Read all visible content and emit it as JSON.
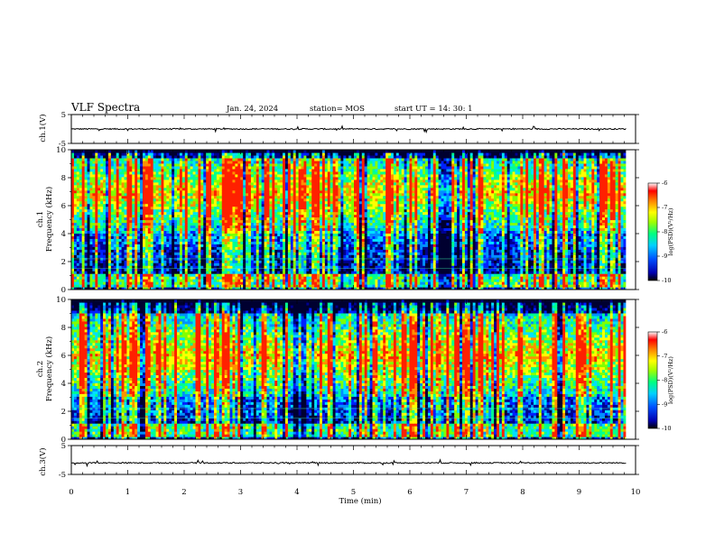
{
  "header": {
    "title": "VLF Spectra",
    "date": "Jan. 24, 2024",
    "station": "station= MOS",
    "start": "start  UT  =   14: 30: 1"
  },
  "chart_data": [
    {
      "id": "ch1-waveform",
      "type": "line",
      "ylabel": "ch.1(V)",
      "ylim": [
        -5,
        5
      ],
      "yticks": [
        "5",
        "-5"
      ],
      "xlim": [
        0,
        10
      ],
      "baseline": 0,
      "data_extent_min": 9.83,
      "color": "#000000"
    },
    {
      "id": "ch1-spectrogram",
      "type": "heatmap",
      "ylabel": "ch.1\nFrequency (kHz)",
      "ylim": [
        0,
        10
      ],
      "yticks": [
        "0",
        "2",
        "4",
        "6",
        "8",
        "10"
      ],
      "xlim": [
        0,
        10
      ],
      "data_extent_min": 9.83,
      "emission_band_khz": [
        4.0,
        9.5
      ],
      "emission_center_khz": 7.0,
      "low_band_khz": [
        0.2,
        1.2
      ],
      "colorbar": {
        "label": "log(PSD)(V²/Hz)",
        "ticks": [
          "-6",
          "-7",
          "-8",
          "-9",
          "-10"
        ],
        "range": [
          -10,
          -6
        ]
      }
    },
    {
      "id": "ch2-spectrogram",
      "type": "heatmap",
      "ylabel": "ch.2\nFrequency (kHz)",
      "ylim": [
        0,
        10
      ],
      "yticks": [
        "0",
        "2",
        "4",
        "6",
        "8",
        "10"
      ],
      "xlim": [
        0,
        10
      ],
      "data_extent_min": 9.83,
      "emission_band_khz": [
        3.0,
        9.0
      ],
      "emission_center_khz": 6.0,
      "low_band_khz": [
        0.2,
        1.2
      ],
      "colorbar": {
        "label": "log(PSD)(V²/Hz)",
        "ticks": [
          "-6",
          "-7",
          "-8",
          "-9",
          "-10"
        ],
        "range": [
          -10,
          -6
        ]
      }
    },
    {
      "id": "ch3-waveform",
      "type": "line",
      "ylabel": "ch.3(V)",
      "ylim": [
        -5,
        5
      ],
      "yticks": [
        "5",
        "-5"
      ],
      "xlim": [
        0,
        10
      ],
      "baseline": -1,
      "data_extent_min": 9.83,
      "color": "#000000"
    }
  ],
  "x_axis": {
    "label": "Time  (min)",
    "ticks": [
      "0",
      "1",
      "2",
      "3",
      "4",
      "5",
      "6",
      "7",
      "8",
      "9",
      "10"
    ]
  },
  "colormap": [
    "#000080",
    "#0000ff",
    "#00a0ff",
    "#00ffff",
    "#80ff80",
    "#ffff00",
    "#ff8000",
    "#ff0000",
    "#ffffff"
  ]
}
